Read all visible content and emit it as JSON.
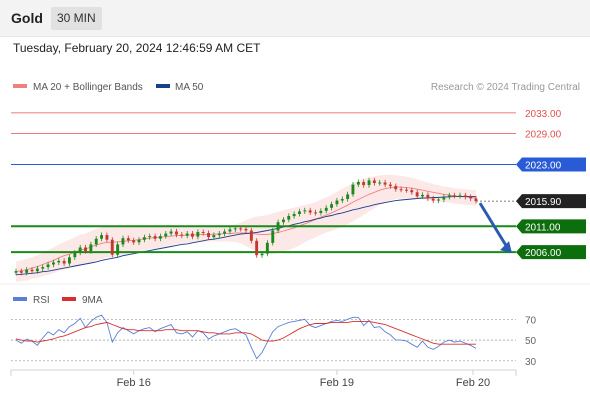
{
  "header": {
    "symbol": "Gold",
    "timeframe": "30 MIN"
  },
  "datetime": "Tuesday, February 20, 2024 12:46:59 AM CET",
  "legend": {
    "ma20": "MA 20 + Bollinger Bands",
    "ma50": "MA 50",
    "credit": "Research © 2024 Trading Central",
    "rsi": "RSI",
    "ma9": "9MA"
  },
  "colors": {
    "ma20": "#f08080",
    "ma50": "#1a3f8c",
    "resistance": "#e05050",
    "pivot": "#2a5bd7",
    "support": "#1a8a1a",
    "support_label_bg": "#0d6e0d",
    "current_label_bg": "#222222",
    "up_candle": "#1a8a1a",
    "down_candle": "#c0392b",
    "band_fill": "#fde2e2",
    "rsi": "#5a7fd8",
    "ma9": "#d83030",
    "arrow": "#2a5bb0"
  },
  "chart_data": [
    {
      "type": "candlestick",
      "title": "Gold",
      "timeframe": "30 MIN",
      "x_ticks": [
        "Feb 16",
        "Feb 19",
        "Feb 20"
      ],
      "ylim": [
        2000.4,
        2035.5
      ],
      "current_price": 2015.9,
      "levels": [
        {
          "value": 2033.0,
          "label": "2033.00",
          "kind": "resistance"
        },
        {
          "value": 2029.0,
          "label": "2029.00",
          "kind": "resistance"
        },
        {
          "value": 2023.0,
          "label": "2023.00",
          "kind": "pivot"
        },
        {
          "value": 2011.0,
          "label": "2011.00",
          "kind": "support"
        },
        {
          "value": 2006.0,
          "label": "2006.00",
          "kind": "support"
        }
      ],
      "forecast_arrow": {
        "from_price": 2015.9,
        "to_price": 2006.0
      },
      "close": [
        2002.3,
        2002.0,
        2002.6,
        2002.3,
        2002.8,
        2003.1,
        2003.6,
        2004.0,
        2004.3,
        2003.8,
        2005.0,
        2005.9,
        2006.9,
        2006.2,
        2007.5,
        2008.6,
        2009.3,
        2008.4,
        2005.5,
        2007.5,
        2008.7,
        2008.3,
        2007.9,
        2008.4,
        2008.9,
        2009.1,
        2008.6,
        2009.1,
        2009.6,
        2010.0,
        2009.4,
        2009.2,
        2009.6,
        2009.0,
        2009.9,
        2009.7,
        2008.9,
        2009.3,
        2009.6,
        2010.0,
        2010.4,
        2010.6,
        2010.5,
        2010.2,
        2008.2,
        2005.4,
        2005.7,
        2007.8,
        2010.2,
        2011.8,
        2012.3,
        2013.0,
        2013.4,
        2013.9,
        2014.1,
        2013.7,
        2013.6,
        2014.0,
        2014.6,
        2015.3,
        2016.0,
        2016.3,
        2017.2,
        2019.1,
        2019.6,
        2019.0,
        2019.9,
        2019.4,
        2019.5,
        2019.1,
        2018.8,
        2018.2,
        2018.1,
        2018.0,
        2017.6,
        2016.8,
        2017.1,
        2016.4,
        2016.0,
        2016.2,
        2016.7,
        2017.0,
        2016.9,
        2017.0,
        2016.7,
        2016.4,
        2015.9
      ],
      "ma20": [
        2002.2,
        2002.4,
        2002.6,
        2002.9,
        2003.2,
        2003.6,
        2004.0,
        2004.4,
        2004.9,
        2005.3,
        2005.6,
        2006.0,
        2006.4,
        2006.6,
        2007.0,
        2007.4,
        2007.7,
        2007.9,
        2007.9,
        2008.0,
        2008.1,
        2008.2,
        2008.3,
        2008.4,
        2008.6,
        2008.7,
        2008.8,
        2008.9,
        2009.0,
        2009.1,
        2009.2,
        2009.2,
        2009.3,
        2009.3,
        2009.4,
        2009.4,
        2009.4,
        2009.5,
        2009.5,
        2009.6,
        2009.6,
        2009.7,
        2009.7,
        2009.7,
        2009.6,
        2009.5,
        2009.4,
        2009.4,
        2009.6,
        2009.8,
        2010.1,
        2010.4,
        2010.7,
        2011.1,
        2011.5,
        2011.9,
        2012.3,
        2012.8,
        2013.2,
        2013.6,
        2014.1,
        2014.6,
        2015.1,
        2015.7,
        2016.2,
        2016.7,
        2017.2,
        2017.6,
        2018.0,
        2018.3,
        2018.5,
        2018.6,
        2018.6,
        2018.5,
        2018.4,
        2018.2,
        2018.0,
        2017.8,
        2017.6,
        2017.4,
        2017.2,
        2017.1,
        2016.9,
        2016.8,
        2016.7,
        2016.6,
        2016.5
      ],
      "ma50": [
        2001.6,
        2001.7,
        2001.8,
        2001.9,
        2002.0,
        2002.2,
        2002.3,
        2002.5,
        2002.7,
        2002.9,
        2003.1,
        2003.3,
        2003.5,
        2003.7,
        2003.9,
        2004.1,
        2004.4,
        2004.6,
        2004.8,
        2005.0,
        2005.3,
        2005.5,
        2005.7,
        2005.9,
        2006.1,
        2006.3,
        2006.5,
        2006.7,
        2006.9,
        2007.1,
        2007.3,
        2007.5,
        2007.6,
        2007.8,
        2008.0,
        2008.2,
        2008.4,
        2008.5,
        2008.7,
        2008.9,
        2009.1,
        2009.3,
        2009.5,
        2009.6,
        2009.7,
        2009.8,
        2010.0,
        2010.2,
        2010.4,
        2010.6,
        2010.9,
        2011.1,
        2011.4,
        2011.6,
        2011.9,
        2012.1,
        2012.4,
        2012.6,
        2012.9,
        2013.1,
        2013.4,
        2013.6,
        2013.9,
        2014.2,
        2014.4,
        2014.7,
        2014.9,
        2015.2,
        2015.4,
        2015.6,
        2015.8,
        2016.0,
        2016.1,
        2016.2,
        2016.3,
        2016.4,
        2016.5,
        2016.5,
        2016.6,
        2016.6,
        2016.7,
        2016.7,
        2016.8,
        2016.8,
        2016.8,
        2016.8,
        2016.8
      ],
      "band_width": [
        2.0,
        2.0,
        2.1,
        2.1,
        2.2,
        2.3,
        2.4,
        2.5,
        2.6,
        2.7,
        2.8,
        2.9,
        3.0,
        3.0,
        3.1,
        3.1,
        3.1,
        3.0,
        2.9,
        2.8,
        2.7,
        2.6,
        2.5,
        2.4,
        2.3,
        2.2,
        2.1,
        2.0,
        1.9,
        1.8,
        1.7,
        1.6,
        1.5,
        1.5,
        1.4,
        1.4,
        1.4,
        1.4,
        1.5,
        1.5,
        1.6,
        1.7,
        2.0,
        2.5,
        3.0,
        3.4,
        3.6,
        3.8,
        3.9,
        4.0,
        4.0,
        4.0,
        3.9,
        3.8,
        3.6,
        3.5,
        3.4,
        3.4,
        3.4,
        3.5,
        3.6,
        3.7,
        3.7,
        3.7,
        3.6,
        3.5,
        3.3,
        3.1,
        2.9,
        2.7,
        2.5,
        2.3,
        2.2,
        2.1,
        2.0,
        1.9,
        1.8,
        1.7,
        1.6,
        1.6,
        1.5,
        1.5,
        1.5,
        1.5,
        1.5,
        1.5,
        1.5
      ]
    },
    {
      "type": "line",
      "title": "RSI",
      "y_ticks": [
        70,
        50,
        30
      ],
      "ylim": [
        25,
        79
      ],
      "series": [
        {
          "name": "RSI",
          "values": [
            50,
            47,
            51,
            49,
            45,
            52,
            58,
            55,
            60,
            57,
            63,
            66,
            71,
            62,
            68,
            72,
            74,
            67,
            48,
            57,
            62,
            59,
            56,
            59,
            61,
            62,
            58,
            61,
            63,
            65,
            57,
            56,
            58,
            53,
            59,
            57,
            51,
            54,
            56,
            58,
            60,
            61,
            58,
            55,
            43,
            32,
            38,
            48,
            58,
            63,
            65,
            67,
            68,
            69,
            70,
            64,
            62,
            64,
            66,
            68,
            69,
            68,
            70,
            72,
            72,
            64,
            69,
            62,
            63,
            58,
            55,
            50,
            50,
            49,
            46,
            43,
            49,
            43,
            41,
            44,
            48,
            50,
            48,
            49,
            47,
            45,
            42
          ]
        },
        {
          "name": "9MA",
          "values": [
            51,
            50,
            49,
            49,
            48,
            49,
            50,
            51,
            53,
            54,
            56,
            58,
            60,
            62,
            63,
            65,
            66,
            67,
            65,
            63,
            61,
            60,
            60,
            59,
            59,
            59,
            59,
            59,
            60,
            60,
            60,
            59,
            59,
            59,
            59,
            58,
            57,
            57,
            56,
            56,
            56,
            57,
            57,
            57,
            56,
            53,
            50,
            49,
            49,
            50,
            52,
            55,
            58,
            61,
            63,
            65,
            66,
            66,
            66,
            67,
            67,
            67,
            67,
            68,
            68,
            68,
            68,
            67,
            66,
            65,
            63,
            61,
            59,
            57,
            55,
            53,
            51,
            49,
            47,
            46,
            46,
            46,
            46,
            46,
            46,
            46,
            46
          ]
        }
      ]
    }
  ]
}
